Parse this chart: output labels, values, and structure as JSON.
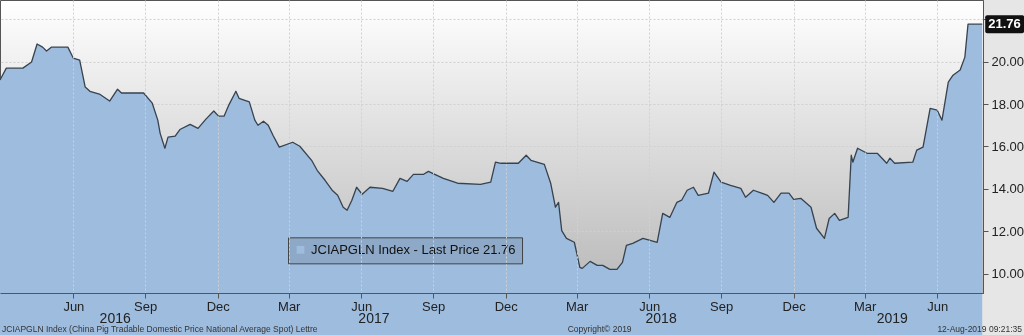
{
  "chart_data": {
    "type": "area",
    "x": [
      "2016-03-15",
      "2016-03-23",
      "2016-04-13",
      "2016-04-24",
      "2016-05-01",
      "2016-05-08",
      "2016-05-13",
      "2016-05-19",
      "2016-06-09",
      "2016-06-16",
      "2016-06-24",
      "2016-07-01",
      "2016-07-07",
      "2016-07-19",
      "2016-08-01",
      "2016-08-11",
      "2016-08-16",
      "2016-09-13",
      "2016-09-24",
      "2016-10-01",
      "2016-10-04",
      "2016-10-10",
      "2016-10-14",
      "2016-10-23",
      "2016-10-29",
      "2016-11-11",
      "2016-11-21",
      "2016-12-01",
      "2016-12-11",
      "2016-12-17",
      "2016-12-24",
      "2016-12-30",
      "2017-01-08",
      "2017-01-12",
      "2017-01-25",
      "2017-02-01",
      "2017-02-05",
      "2017-02-12",
      "2017-02-18",
      "2017-02-24",
      "2017-03-04",
      "2017-03-21",
      "2017-03-30",
      "2017-04-14",
      "2017-04-21",
      "2017-05-01",
      "2017-05-10",
      "2017-05-17",
      "2017-05-24",
      "2017-05-29",
      "2017-06-04",
      "2017-06-10",
      "2017-06-17",
      "2017-06-27",
      "2017-07-13",
      "2017-07-26",
      "2017-08-04",
      "2017-08-13",
      "2017-08-21",
      "2017-09-03",
      "2017-09-09",
      "2017-09-28",
      "2017-10-16",
      "2017-11-14",
      "2017-11-27",
      "2017-12-03",
      "2017-12-10",
      "2018-01-01",
      "2018-01-11",
      "2018-01-17",
      "2018-02-03",
      "2018-02-11",
      "2018-02-17",
      "2018-02-21",
      "2018-02-25",
      "2018-03-03",
      "2018-03-13",
      "2018-03-20",
      "2018-03-23",
      "2018-04-02",
      "2018-04-11",
      "2018-04-18",
      "2018-04-27",
      "2018-05-06",
      "2018-05-13",
      "2018-05-18",
      "2018-05-26",
      "2018-06-08",
      "2018-06-26",
      "2018-07-03",
      "2018-07-12",
      "2018-07-21",
      "2018-07-27",
      "2018-08-03",
      "2018-08-11",
      "2018-08-17",
      "2018-08-30",
      "2018-09-06",
      "2018-09-15",
      "2018-09-27",
      "2018-10-10",
      "2018-10-16",
      "2018-10-26",
      "2018-11-13",
      "2018-11-21",
      "2018-11-30",
      "2018-12-10",
      "2018-12-16",
      "2018-12-25",
      "2019-01-07",
      "2019-01-14",
      "2019-01-24",
      "2019-01-30",
      "2019-02-06",
      "2019-02-12",
      "2019-02-23",
      "2019-02-27",
      "2019-03-01",
      "2019-03-07",
      "2019-03-19",
      "2019-04-01",
      "2019-04-13",
      "2019-04-17",
      "2019-04-23",
      "2019-05-16",
      "2019-05-21",
      "2019-05-29",
      "2019-06-07",
      "2019-06-16",
      "2019-06-22",
      "2019-06-30",
      "2019-07-06",
      "2019-07-15",
      "2019-07-21",
      "2019-07-25",
      "2019-08-12"
    ],
    "series": [
      {
        "name": "JCIAPGLN Index - Last Price 21.76",
        "color": "#9dbcde",
        "values": [
          19.13,
          19.69,
          19.69,
          19.98,
          20.83,
          20.68,
          20.5,
          20.68,
          20.68,
          20.16,
          20.07,
          18.8,
          18.6,
          18.47,
          18.14,
          18.7,
          18.52,
          18.52,
          18.04,
          17.24,
          16.62,
          15.92,
          16.44,
          16.49,
          16.8,
          17.04,
          16.85,
          17.29,
          17.67,
          17.43,
          17.43,
          17.95,
          18.6,
          18.27,
          18.1,
          17.24,
          17.0,
          17.19,
          17.0,
          16.53,
          15.97,
          16.2,
          16.01,
          15.35,
          14.88,
          14.41,
          13.94,
          13.7,
          13.14,
          13.0,
          13.47,
          14.08,
          13.75,
          14.08,
          14.03,
          13.89,
          14.5,
          14.36,
          14.69,
          14.69,
          14.83,
          14.5,
          14.27,
          14.22,
          14.32,
          15.26,
          15.21,
          15.21,
          15.59,
          15.35,
          15.16,
          14.27,
          13.14,
          13.37,
          12.04,
          11.67,
          11.49,
          10.31,
          10.26,
          10.59,
          10.4,
          10.4,
          10.21,
          10.21,
          10.54,
          11.34,
          11.44,
          11.67,
          11.49,
          12.85,
          12.66,
          13.37,
          13.47,
          13.94,
          14.08,
          13.7,
          13.8,
          14.79,
          14.32,
          14.17,
          14.03,
          13.61,
          13.94,
          13.7,
          13.37,
          13.8,
          13.8,
          13.51,
          13.56,
          13.14,
          12.15,
          11.67,
          12.61,
          12.85,
          12.52,
          12.66,
          15.59,
          15.26,
          15.92,
          15.68,
          15.68,
          15.21,
          15.45,
          15.21,
          15.26,
          15.83,
          15.97,
          17.8,
          17.71,
          17.24,
          19.03,
          19.36,
          19.6,
          20.21,
          21.76,
          21.76
        ]
      }
    ],
    "xlim": [
      "2016-03-15",
      "2019-08-13"
    ],
    "xticks": [
      {
        "value": "2016-06-16",
        "label": "Jun"
      },
      {
        "value": "2016-09-15",
        "label": "Sep"
      },
      {
        "value": "2016-12-16",
        "label": "Dec"
      },
      {
        "value": "2017-03-16",
        "label": "Mar"
      },
      {
        "value": "2017-06-16",
        "label": "Jun"
      },
      {
        "value": "2017-09-15",
        "label": "Sep"
      },
      {
        "value": "2017-12-16",
        "label": "Dec"
      },
      {
        "value": "2018-03-16",
        "label": "Mar"
      },
      {
        "value": "2018-06-16",
        "label": "Jun"
      },
      {
        "value": "2018-09-15",
        "label": "Sep"
      },
      {
        "value": "2018-12-16",
        "label": "Dec"
      },
      {
        "value": "2019-03-16",
        "label": "Mar"
      },
      {
        "value": "2019-06-16",
        "label": "Jun"
      }
    ],
    "x2lim": [
      "2016-03-15",
      "2019-08-13"
    ],
    "x2ticks": [
      {
        "value": "2016-08-08",
        "label": "2016"
      },
      {
        "value": "2017-07-02",
        "label": "2017"
      },
      {
        "value": "2018-07-01",
        "label": "2018"
      },
      {
        "value": "2019-04-20",
        "label": "2019"
      }
    ],
    "ylim": [
      9.1,
      22.9
    ],
    "yticks": [
      {
        "value": 10,
        "label": "10.00"
      },
      {
        "value": 12,
        "label": "12.00"
      },
      {
        "value": 14,
        "label": "14.00"
      },
      {
        "value": 16,
        "label": "16.00"
      },
      {
        "value": 18,
        "label": "18.00"
      },
      {
        "value": 20,
        "label": "20.00"
      },
      {
        "value": 22,
        "label": null
      }
    ],
    "grid": true,
    "legend": "bottom",
    "annotations": [
      "JCIAPGLN Index (China Pig Tradable Domestic Price National Average Spot) Lettre",
      "Copyright© 2019",
      "12-Aug-2019 09:21:35",
      {
        "text": "21.76",
        "x": "2019-08-12",
        "y": 21.76
      }
    ]
  }
}
